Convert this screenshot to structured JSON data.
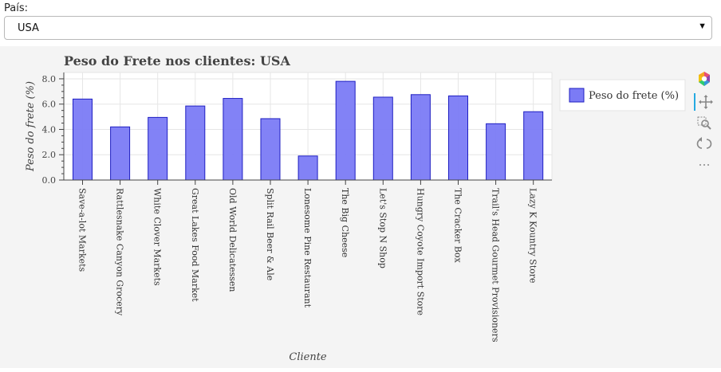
{
  "filter": {
    "label": "País:",
    "selected": "USA",
    "caret_icon": "chevron-down-icon"
  },
  "chart_data": {
    "type": "bar",
    "title": "Peso do Frete nos clientes: USA",
    "xlabel": "Cliente",
    "ylabel": "Peso do frete (%)",
    "ylim": [
      0,
      8.5
    ],
    "yticks": [
      0,
      2,
      4,
      6,
      8
    ],
    "ytick_labels": [
      "0.0",
      "2.0",
      "4.0",
      "6.0",
      "8.0"
    ],
    "grid": true,
    "legend_position": "right",
    "bar_color": "#7b7bf5",
    "bar_edge_color": "#1f1fc2",
    "categories": [
      "Save-a-lot Markets",
      "Rattlesnake Canyon Grocery",
      "White Clover Markets",
      "Great Lakes Food Market",
      "Old World Delicatessen",
      "Split Rail Beer & Ale",
      "Lonesome Pine Restaurant",
      "The Big Cheese",
      "Let's Stop N Shop",
      "Hungry Coyote Import Store",
      "The Cracker Box",
      "Trail's Head Gourmet Provisioners",
      "Lazy K Kountry Store"
    ],
    "series": [
      {
        "name": "Peso do frete (%)",
        "values": [
          6.4,
          4.2,
          4.95,
          5.85,
          6.45,
          4.85,
          1.9,
          7.8,
          6.55,
          6.75,
          6.65,
          4.45,
          5.4
        ]
      }
    ]
  },
  "toolbar": {
    "items": [
      {
        "name": "bokeh-logo-icon"
      },
      {
        "name": "pan-icon"
      },
      {
        "name": "box-zoom-icon"
      },
      {
        "name": "reset-icon"
      },
      {
        "name": "more-icon"
      }
    ]
  }
}
